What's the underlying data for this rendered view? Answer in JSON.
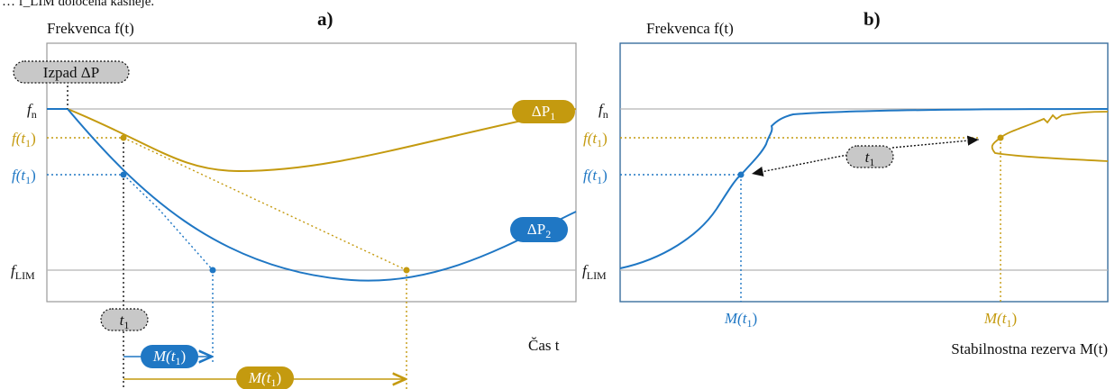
{
  "top_fragment": "… f_LIM določena kasneje.",
  "panel_a": {
    "tag": "a)",
    "y_title": "Frekvenca f(t)",
    "x_title": "Čas t",
    "y_ticks": {
      "fn": "f",
      "fn_sub": "n",
      "f1": "f(t",
      "f1_sub": "1",
      "f1_end": ")",
      "flim": "f",
      "flim_sub": "LIM"
    },
    "event_label": "Izpad ΔP",
    "dp1": "ΔP",
    "dp1_sub": "1",
    "dp2": "ΔP",
    "dp2_sub": "2",
    "t1": "t",
    "t1_sub": "1",
    "m1": "M(t",
    "m1_sub": "1",
    "m1_end": ")"
  },
  "panel_b": {
    "tag": "b)",
    "y_title": "Frekvenca f(t)",
    "x_title": "Stabilnostna rezerva M(t)",
    "t1": "t",
    "t1_sub": "1",
    "m1": "M(t",
    "m1_sub": "1",
    "m1_end": ")"
  },
  "colors": {
    "blue": "#1f77c4",
    "gold": "#c49a0f",
    "pill_gray": "#c8c8c8",
    "frame": "#9a9a9a",
    "axis_b": "#3a6e9e",
    "ref_line": "#b5b5b5"
  }
}
